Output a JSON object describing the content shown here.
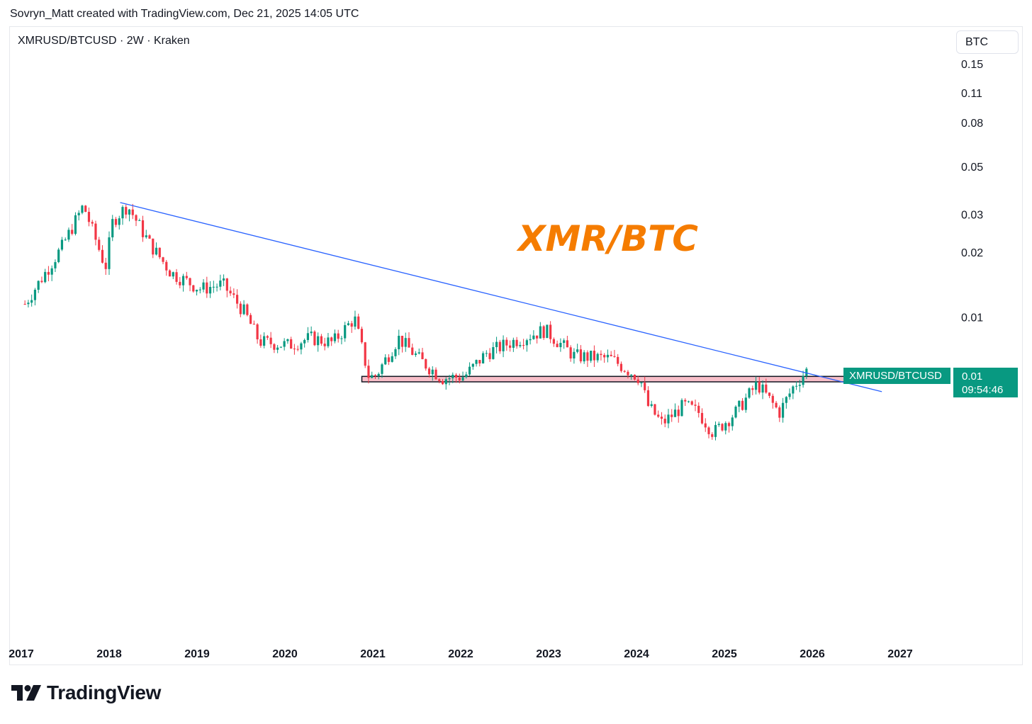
{
  "header": {
    "credit": "Sovryn_Matt created with TradingView.com, Dec 21, 2025 14:05 UTC"
  },
  "chart": {
    "symbol_line": "XMRUSD/BTCUSD · 2W · Kraken",
    "currency_button": "BTC",
    "annotation": "XMR/BTC",
    "price_label_symbol": "XMRUSD/BTCUSD",
    "price_label_value": "0.01",
    "price_label_countdown": "09:54:46"
  },
  "footer": {
    "brand": "TradingView"
  },
  "colors": {
    "up": "#089981",
    "down": "#f23645",
    "trendline": "#2962ff",
    "zone_fill": "#f8bfc9",
    "annotation": "#f57c00"
  },
  "chart_data": {
    "type": "candlestick",
    "y_scale": "log",
    "y_ticks": [
      "0.15",
      "0.11",
      "0.08",
      "0.05",
      "0.03",
      "0.02",
      "0.01"
    ],
    "x_ticks": [
      "2017",
      "2018",
      "2019",
      "2020",
      "2021",
      "2022",
      "2023",
      "2024",
      "2025",
      "2026",
      "2027"
    ],
    "approx_close_path": [
      {
        "date": "2017-01",
        "close": 0.0115
      },
      {
        "date": "2017-06",
        "close": 0.021
      },
      {
        "date": "2017-09",
        "close": 0.033
      },
      {
        "date": "2017-12",
        "close": 0.017
      },
      {
        "date": "2018-01",
        "close": 0.028
      },
      {
        "date": "2018-03",
        "close": 0.033
      },
      {
        "date": "2018-06",
        "close": 0.022
      },
      {
        "date": "2018-09",
        "close": 0.016
      },
      {
        "date": "2019-01",
        "close": 0.0135
      },
      {
        "date": "2019-04",
        "close": 0.0142
      },
      {
        "date": "2019-07",
        "close": 0.0105
      },
      {
        "date": "2019-09",
        "close": 0.0077
      },
      {
        "date": "2020-01",
        "close": 0.0074
      },
      {
        "date": "2020-04",
        "close": 0.008
      },
      {
        "date": "2020-07",
        "close": 0.0076
      },
      {
        "date": "2020-10",
        "close": 0.0099
      },
      {
        "date": "2020-12",
        "close": 0.0052
      },
      {
        "date": "2021-01",
        "close": 0.0054
      },
      {
        "date": "2021-04",
        "close": 0.008
      },
      {
        "date": "2021-07",
        "close": 0.0063
      },
      {
        "date": "2021-10",
        "close": 0.0052
      },
      {
        "date": "2022-01",
        "close": 0.0053
      },
      {
        "date": "2022-04",
        "close": 0.0068
      },
      {
        "date": "2022-08",
        "close": 0.0078
      },
      {
        "date": "2022-12",
        "close": 0.0087
      },
      {
        "date": "2023-04",
        "close": 0.0066
      },
      {
        "date": "2023-09",
        "close": 0.0064
      },
      {
        "date": "2024-01",
        "close": 0.0052
      },
      {
        "date": "2024-02",
        "close": 0.0039
      },
      {
        "date": "2024-04",
        "close": 0.0032
      },
      {
        "date": "2024-07",
        "close": 0.0039
      },
      {
        "date": "2024-09",
        "close": 0.0036
      },
      {
        "date": "2024-11",
        "close": 0.0029
      },
      {
        "date": "2025-02",
        "close": 0.0036
      },
      {
        "date": "2025-05",
        "close": 0.0049
      },
      {
        "date": "2025-08",
        "close": 0.0036
      },
      {
        "date": "2025-10",
        "close": 0.0048
      },
      {
        "date": "2025-12",
        "close": 0.0058
      }
    ],
    "trendline": {
      "from": {
        "date": "2018-02",
        "value": 0.034
      },
      "to": {
        "date": "2026-10",
        "value": 0.0045
      }
    },
    "support_zone": {
      "from": "2020-11",
      "to": "2026-09",
      "low": 0.005,
      "high": 0.0053
    }
  }
}
